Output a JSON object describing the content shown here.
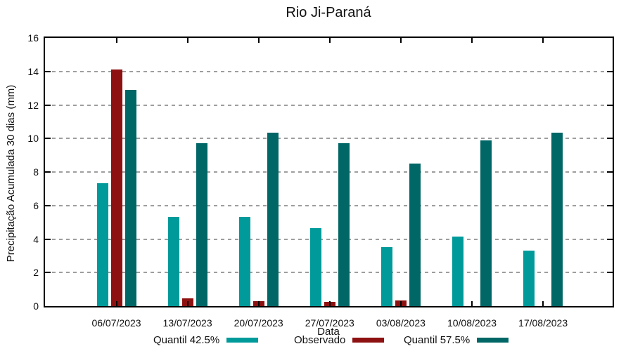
{
  "chart_data": {
    "type": "bar",
    "title": "Rio Ji-Paraná",
    "xlabel": "Data",
    "ylabel": "Precipitação Acumulada 30 dias (mm)",
    "categories": [
      "06/07/2023",
      "13/07/2023",
      "20/07/2023",
      "27/07/2023",
      "03/08/2023",
      "10/08/2023",
      "17/08/2023"
    ],
    "series": [
      {
        "name": "Quantil 42.5%",
        "color": "#009A9A",
        "values": [
          7.35,
          5.3,
          5.3,
          4.65,
          3.5,
          4.15,
          3.3
        ]
      },
      {
        "name": "Observado",
        "color": "#8E1111",
        "values": [
          14.1,
          0.45,
          0.3,
          0.25,
          0.35,
          0,
          0
        ]
      },
      {
        "name": "Quantil 57.5%",
        "color": "#006666",
        "values": [
          12.9,
          9.7,
          10.35,
          9.7,
          8.5,
          9.9,
          10.35
        ]
      }
    ],
    "ylim": [
      0,
      16
    ],
    "ytick_step": 2,
    "grid": "horizontal-dashed",
    "grid_color": "#9e9e9e",
    "axis_color": "#000000",
    "legend_position": "bottom"
  }
}
